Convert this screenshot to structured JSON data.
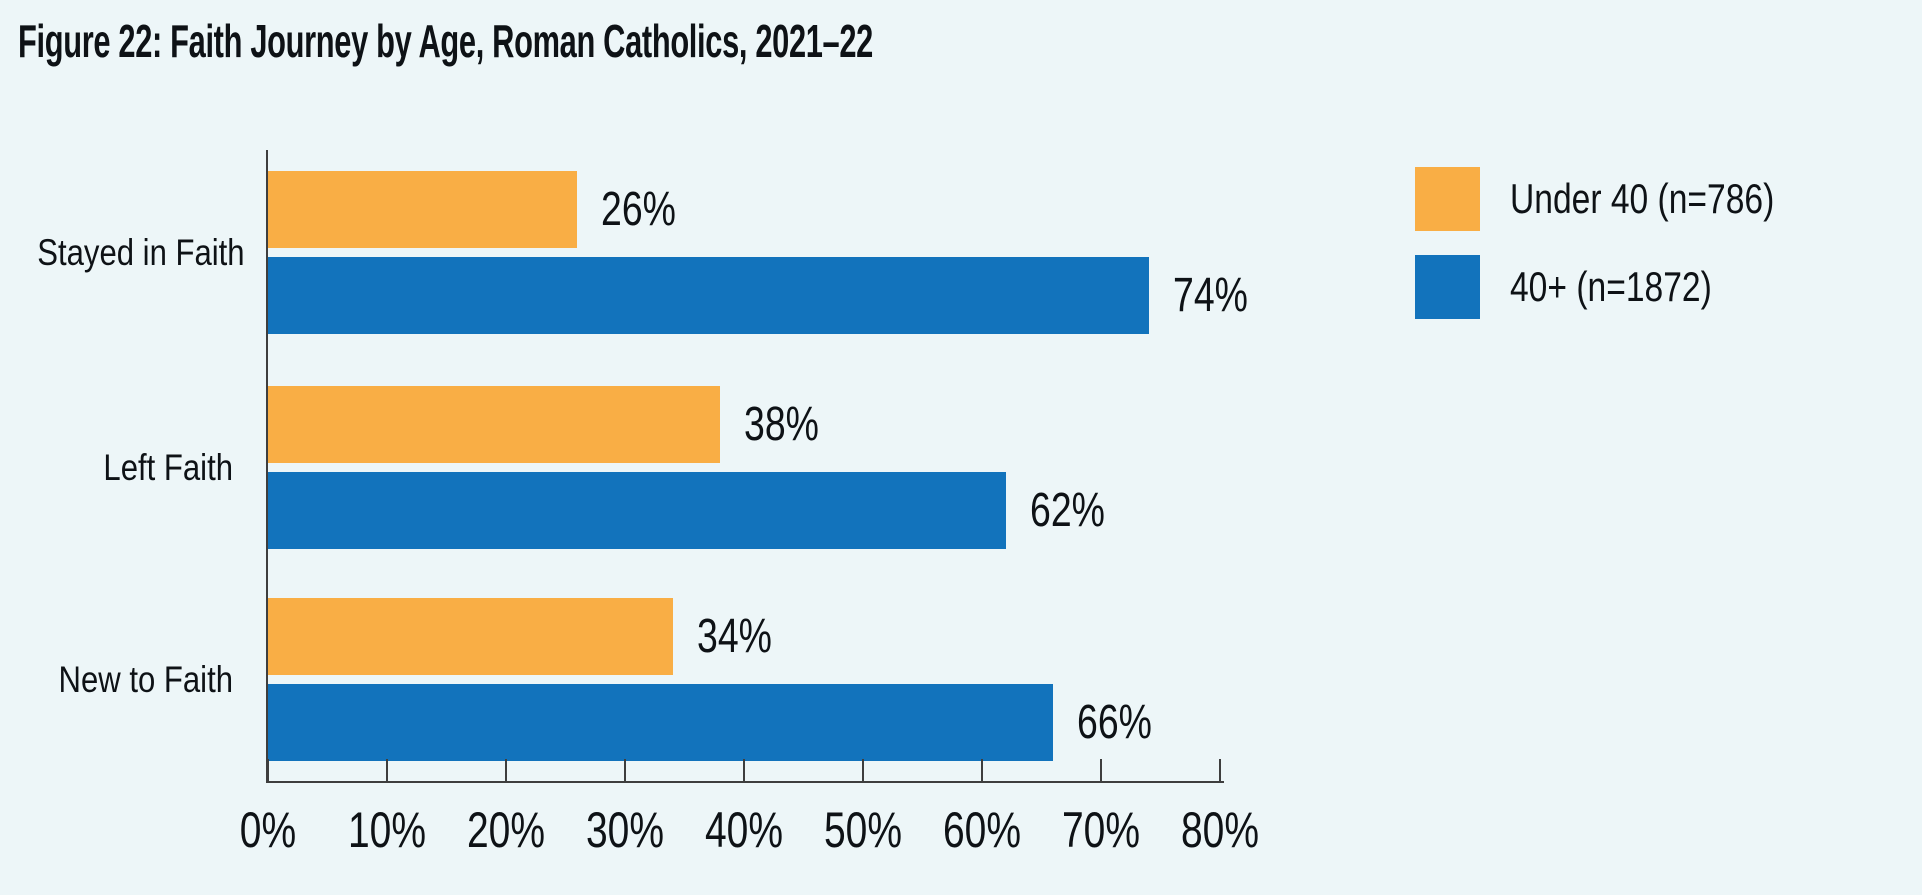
{
  "chart_data": {
    "type": "bar",
    "orientation": "horizontal",
    "title": "Figure 22: Faith Journey by Age, Roman Catholics, 2021–22",
    "categories": [
      "Stayed in Faith",
      "Left Faith",
      "New to Faith"
    ],
    "series": [
      {
        "name": "Under 40 (n=786)",
        "color": "#F9AE45",
        "values": [
          26,
          38,
          34
        ],
        "labels": [
          "26%",
          "38%",
          "34%"
        ]
      },
      {
        "name": "40+ (n=1872)",
        "color": "#1273BC",
        "values": [
          74,
          62,
          66
        ],
        "labels": [
          "74%",
          "62%",
          "66%"
        ]
      }
    ],
    "x_ticks": [
      "0%",
      "10%",
      "20%",
      "30%",
      "40%",
      "50%",
      "60%",
      "70%",
      "80%"
    ],
    "xlim": [
      0,
      80
    ],
    "grid": false,
    "legend_position": "top-right",
    "colors": {
      "background": "#EDF6F8",
      "axis": "#3E3E3E",
      "text": "#0E1216"
    }
  }
}
